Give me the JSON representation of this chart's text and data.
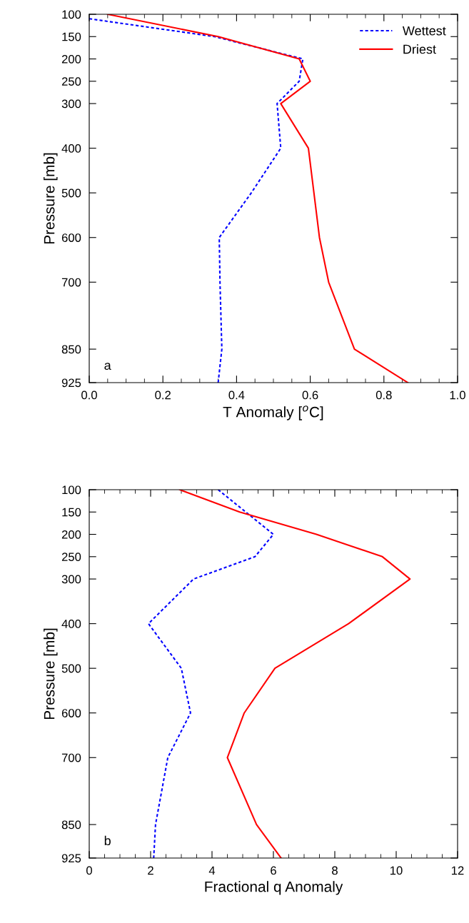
{
  "chart_data": [
    {
      "type": "line",
      "orientation": "horizontal",
      "xlabel": "T Anomaly [$^{o}$C]",
      "ylabel": "Pressure [mb]",
      "annotations": [
        "a"
      ],
      "legend": "top right",
      "grid": false,
      "marker": "none",
      "xlim": [
        0,
        1
      ],
      "xticks": [
        {
          "value": 0,
          "label": "0.0"
        },
        {
          "value": 0.2,
          "label": "0.2"
        },
        {
          "value": 0.4,
          "label": "0.4"
        },
        {
          "value": 0.6,
          "label": "0.6"
        },
        {
          "value": 0.8,
          "label": "0.8"
        },
        {
          "value": 1,
          "label": "1.0"
        }
      ],
      "ylim": [
        925,
        100
      ],
      "yticks": [
        100,
        150,
        200,
        250,
        300,
        400,
        500,
        600,
        700,
        850,
        925
      ],
      "series": [
        {
          "name": "Wettest",
          "color": "#0000ff",
          "line_style": "dotted",
          "x": [
            110,
            150,
            200,
            250,
            300,
            400,
            500,
            600,
            700,
            850,
            925
          ],
          "values": [
            0.0,
            0.34,
            0.58,
            0.57,
            0.51,
            0.52,
            0.44,
            0.353,
            0.355,
            0.36,
            0.35
          ]
        },
        {
          "name": "Driest",
          "color": "#ff0000",
          "line_style": "solid",
          "x": [
            100,
            150,
            200,
            250,
            300,
            400,
            500,
            600,
            700,
            850,
            925
          ],
          "values": [
            0.05,
            0.35,
            0.57,
            0.6,
            0.52,
            0.595,
            0.61,
            0.625,
            0.65,
            0.72,
            0.865
          ]
        }
      ]
    },
    {
      "type": "line",
      "orientation": "horizontal",
      "xlabel": "Fractional q Anomaly",
      "ylabel": "Pressure [mb]",
      "annotations": [
        "b"
      ],
      "grid": false,
      "marker": "none",
      "xlim": [
        0,
        12
      ],
      "xticks": [
        0,
        2,
        4,
        6,
        8,
        10,
        12
      ],
      "ylim": [
        925,
        100
      ],
      "yticks": [
        100,
        150,
        200,
        250,
        300,
        400,
        500,
        600,
        700,
        850,
        925
      ],
      "series": [
        {
          "color": "#0000ff",
          "line_style": "dotted",
          "x": [
            100,
            150,
            200,
            250,
            300,
            400,
            500,
            600,
            700,
            850,
            925
          ],
          "values": [
            4.2,
            5.1,
            6.0,
            5.4,
            3.4,
            1.93,
            3.0,
            3.3,
            2.56,
            2.16,
            2.1
          ]
        },
        {
          "color": "#ff0000",
          "line_style": "solid",
          "x": [
            100,
            150,
            200,
            250,
            300,
            400,
            500,
            600,
            700,
            850,
            925
          ],
          "values": [
            2.95,
            4.9,
            7.4,
            9.55,
            10.45,
            8.45,
            6.05,
            5.05,
            4.5,
            5.45,
            6.25
          ]
        }
      ]
    }
  ]
}
